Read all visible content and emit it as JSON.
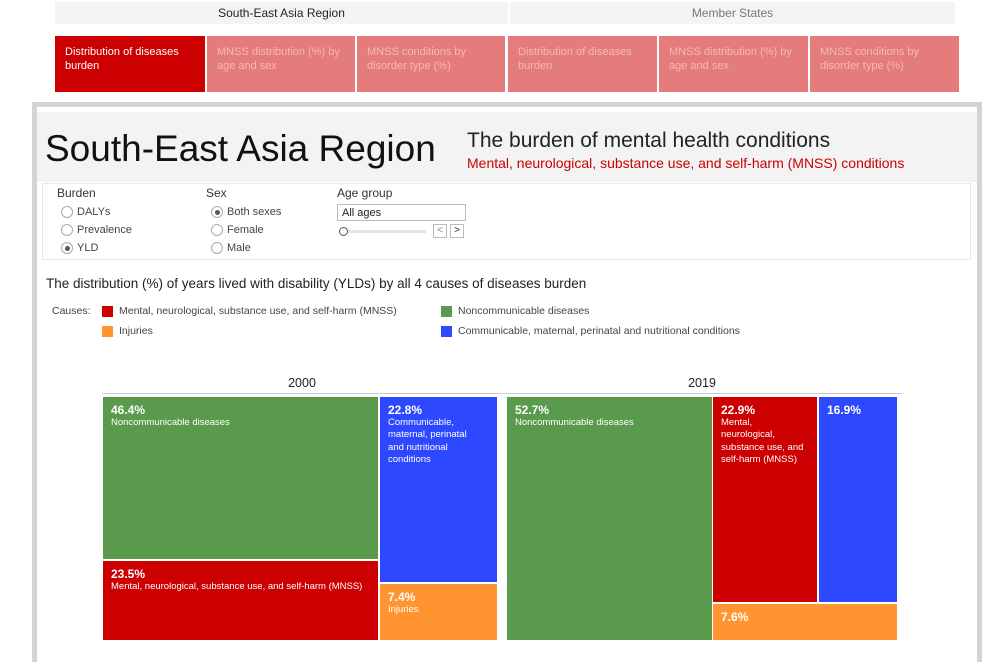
{
  "nav": {
    "region_header": "South-East Asia Region",
    "member_header": "Member States",
    "tabs": [
      "Distribution of diseases burden",
      "MNSS distribution (%) by age and sex",
      "MNSS conditions by disorder type (%)",
      "Distribution of diseases burden",
      "MNSS distribution (%) by age and sex",
      "MNSS conditions by disorder type (%)"
    ],
    "active_tab": 0
  },
  "header": {
    "title": "South-East Asia Region",
    "subtitle": "The burden of mental health conditions",
    "subtitle2": "Mental, neurological, substance use, and self-harm (MNSS) conditions"
  },
  "filters": {
    "burden_label": "Burden",
    "burden_options": [
      "DALYs",
      "Prevalence",
      "YLD"
    ],
    "burden_selected": "YLD",
    "sex_label": "Sex",
    "sex_options": [
      "Both sexes",
      "Female",
      "Male"
    ],
    "sex_selected": "Both sexes",
    "age_label": "Age group",
    "age_value": "All ages",
    "age_prev": "<",
    "age_next": ">"
  },
  "chart_title": "The distribution (%) of years lived with disability (YLDs) by all 4 causes of diseases burden",
  "legend": {
    "label": "Causes:",
    "items": [
      {
        "name": "Mental, neurological, substance use, and self-harm (MNSS)",
        "color": "#cc0000"
      },
      {
        "name": "Noncommunicable diseases",
        "color": "#5a9a4c"
      },
      {
        "name": "Injuries",
        "color": "#ff9430"
      },
      {
        "name": "Communicable, maternal, perinatal and nutritional conditions",
        "color": "#2e48ff"
      }
    ]
  },
  "chart_data": {
    "type": "treemap",
    "panels": [
      {
        "year": "2000",
        "cells": [
          {
            "cause": "Noncommunicable diseases",
            "pct": "46.4%",
            "label": "Noncommunicable diseases"
          },
          {
            "cause": "MNSS",
            "pct": "23.5%",
            "label": "Mental, neurological, substance use, and self-harm (MNSS)"
          },
          {
            "cause": "Communicable",
            "pct": "22.8%",
            "label": "Communicable, maternal, perinatal and nutritional conditions"
          },
          {
            "cause": "Injuries",
            "pct": "7.4%",
            "label": "Injuries"
          }
        ]
      },
      {
        "year": "2019",
        "cells": [
          {
            "cause": "Noncommunicable diseases",
            "pct": "52.7%",
            "label": "Noncommunicable diseases"
          },
          {
            "cause": "MNSS",
            "pct": "22.9%",
            "label": "Mental, neurological, substance use, and self-harm (MNSS)"
          },
          {
            "cause": "Communicable",
            "pct": "16.9%",
            "label": ""
          },
          {
            "cause": "Injuries",
            "pct": "7.6%",
            "label": ""
          }
        ]
      }
    ]
  }
}
